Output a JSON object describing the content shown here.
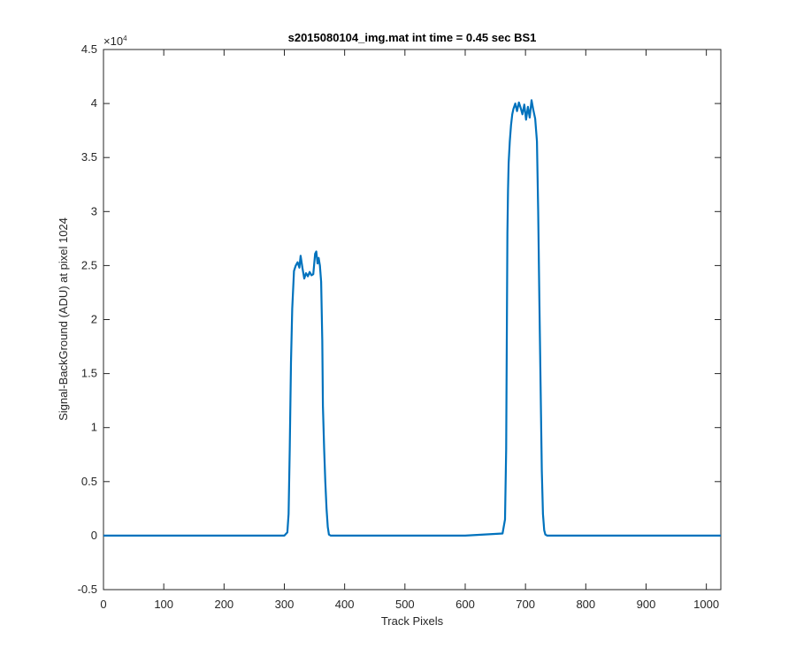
{
  "chart_data": {
    "type": "line",
    "title": "s2015080104_img.mat int time = 0.45 sec   BS1",
    "xlabel": "Track Pixels",
    "ylabel": "Signal-BackGround (ADU) at pixel 1024",
    "xlim": [
      0,
      1024
    ],
    "ylim": [
      -5000,
      45000
    ],
    "y_exponent_label": "×10",
    "y_exponent_power": "4",
    "x_ticks": [
      0,
      100,
      200,
      300,
      400,
      500,
      600,
      700,
      800,
      900,
      1000
    ],
    "x_tick_labels": [
      "0",
      "100",
      "200",
      "300",
      "400",
      "500",
      "600",
      "700",
      "800",
      "900",
      "1000"
    ],
    "y_ticks": [
      -5000,
      0,
      5000,
      10000,
      15000,
      20000,
      25000,
      30000,
      35000,
      40000,
      45000
    ],
    "y_tick_labels": [
      "-0.5",
      "0",
      "0.5",
      "1",
      "1.5",
      "2",
      "2.5",
      "3",
      "3.5",
      "4",
      "4.5"
    ],
    "grid": false,
    "line_color": "#0072BD",
    "series": [
      {
        "x": [
          0,
          300,
          305,
          307,
          309,
          311,
          313,
          316,
          319,
          322,
          325,
          327,
          330,
          333,
          336,
          339,
          342,
          345,
          348,
          351,
          353,
          355,
          357,
          359,
          361,
          363,
          364,
          366,
          368,
          370,
          372,
          374,
          377,
          400,
          500,
          600,
          662,
          666,
          668,
          669,
          670,
          671,
          672,
          674,
          676,
          678,
          680,
          683,
          686,
          689,
          692,
          695,
          698,
          701,
          704,
          707,
          710,
          713,
          716,
          719,
          721,
          723,
          725,
          727,
          729,
          731,
          733,
          736,
          740,
          800,
          900,
          1024
        ],
        "y": [
          0,
          0,
          300,
          2000,
          8000,
          16000,
          21000,
          24500,
          25000,
          25300,
          24800,
          25900,
          24800,
          23800,
          24300,
          24000,
          24400,
          24100,
          24200,
          26100,
          26300,
          25200,
          25700,
          25000,
          23500,
          18000,
          12000,
          8000,
          5000,
          2500,
          800,
          100,
          0,
          0,
          0,
          0,
          200,
          1500,
          8000,
          18000,
          28000,
          32000,
          34500,
          36500,
          38000,
          39000,
          39500,
          40000,
          39300,
          40100,
          39600,
          39000,
          39900,
          38500,
          39700,
          38700,
          40300,
          39400,
          38600,
          36500,
          30000,
          22000,
          14000,
          6000,
          2000,
          500,
          100,
          0,
          0,
          0,
          0,
          0
        ]
      }
    ]
  }
}
